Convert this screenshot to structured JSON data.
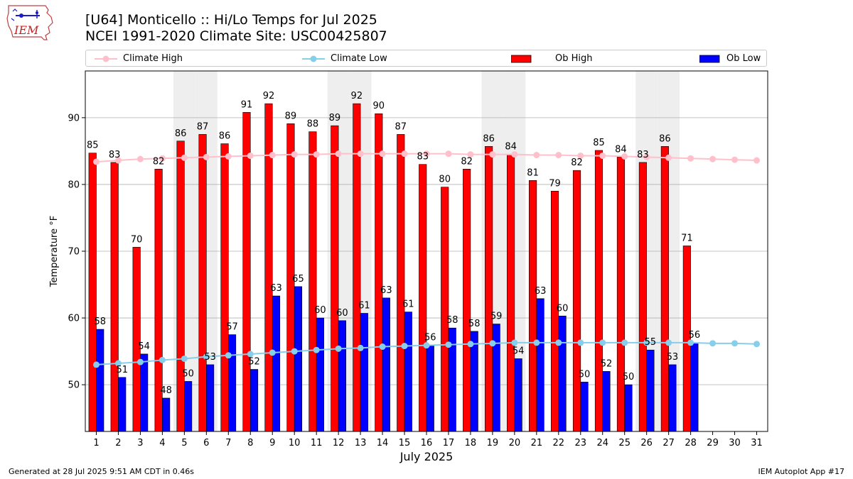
{
  "header": {
    "title_line1": "[U64] Monticello :: Hi/Lo Temps for Jul 2025",
    "title_line2": "NCEI 1991-2020 Climate Site: USC00425807",
    "logo_text": "IEM"
  },
  "footer": {
    "left": "Generated at 28 Jul 2025 9:51 AM CDT in 0.46s",
    "right": "IEM Autoplot App #17"
  },
  "colors": {
    "ob_high": "#ff0000",
    "ob_low": "#0000ff",
    "climate_high": "#ffc0cb",
    "climate_low": "#87ceeb",
    "weekend_band": "#eeeeee",
    "grid": "#b0b0b0"
  },
  "chart_data": {
    "type": "bar",
    "title": "[U64] Monticello :: Hi/Lo Temps for Jul 2025",
    "subtitle": "NCEI 1991-2020 Climate Site: USC00425807",
    "xlabel": "July 2025",
    "ylabel": "Temperature °F",
    "ylim": [
      43,
      97
    ],
    "yticks": [
      50,
      60,
      70,
      80,
      90
    ],
    "grid": true,
    "legend_position": "top",
    "shaded_weekend_days": [
      5,
      6,
      12,
      13,
      19,
      20,
      26,
      27
    ],
    "categories": [
      "1",
      "2",
      "3",
      "4",
      "5",
      "6",
      "7",
      "8",
      "9",
      "10",
      "11",
      "12",
      "13",
      "14",
      "15",
      "16",
      "17",
      "18",
      "19",
      "20",
      "21",
      "22",
      "23",
      "24",
      "25",
      "26",
      "27",
      "28",
      "29",
      "30",
      "31"
    ],
    "series": [
      {
        "name": "Climate High",
        "kind": "line",
        "values": [
          83.4,
          83.6,
          83.8,
          83.9,
          84.0,
          84.1,
          84.2,
          84.3,
          84.4,
          84.5,
          84.5,
          84.6,
          84.6,
          84.6,
          84.6,
          84.6,
          84.6,
          84.5,
          84.5,
          84.5,
          84.4,
          84.4,
          84.3,
          84.3,
          84.2,
          84.1,
          84.0,
          83.9,
          83.8,
          83.7,
          83.6
        ]
      },
      {
        "name": "Climate Low",
        "kind": "line",
        "values": [
          53.0,
          53.2,
          53.4,
          53.7,
          53.9,
          54.2,
          54.4,
          54.6,
          54.8,
          55.0,
          55.2,
          55.4,
          55.5,
          55.7,
          55.8,
          55.9,
          56.0,
          56.1,
          56.2,
          56.3,
          56.3,
          56.3,
          56.3,
          56.3,
          56.3,
          56.3,
          56.3,
          56.3,
          56.2,
          56.2,
          56.1
        ]
      },
      {
        "name": "Ob High",
        "kind": "bar",
        "values": [
          85,
          83,
          70,
          82,
          86,
          87,
          86,
          91,
          92,
          89,
          88,
          89,
          92,
          90,
          87,
          83,
          80,
          82,
          86,
          84,
          81,
          79,
          82,
          85,
          84,
          83,
          86,
          71,
          null,
          null,
          null
        ],
        "plot_values": [
          84.7,
          83.3,
          70.6,
          82.3,
          86.5,
          87.5,
          86.1,
          90.8,
          92.1,
          89.1,
          87.9,
          88.8,
          92.1,
          90.6,
          87.5,
          83.0,
          79.6,
          82.3,
          85.7,
          84.5,
          80.6,
          79.0,
          82.1,
          85.1,
          84.1,
          83.3,
          85.7,
          70.8,
          null,
          null,
          null
        ]
      },
      {
        "name": "Ob Low",
        "kind": "bar",
        "values": [
          58,
          51,
          54,
          48,
          50,
          53,
          57,
          52,
          63,
          65,
          60,
          60,
          61,
          63,
          61,
          56,
          58,
          58,
          59,
          54,
          63,
          60,
          50,
          52,
          50,
          55,
          53,
          56,
          null,
          null,
          null
        ],
        "plot_values": [
          58.3,
          51.1,
          54.6,
          48.0,
          50.5,
          53.0,
          57.5,
          52.3,
          63.3,
          64.7,
          60.0,
          59.6,
          60.7,
          63.0,
          60.9,
          55.9,
          58.5,
          58.0,
          59.1,
          53.9,
          62.9,
          60.3,
          50.4,
          52.0,
          50.0,
          55.2,
          53.0,
          56.3,
          null,
          null,
          null
        ]
      }
    ]
  }
}
